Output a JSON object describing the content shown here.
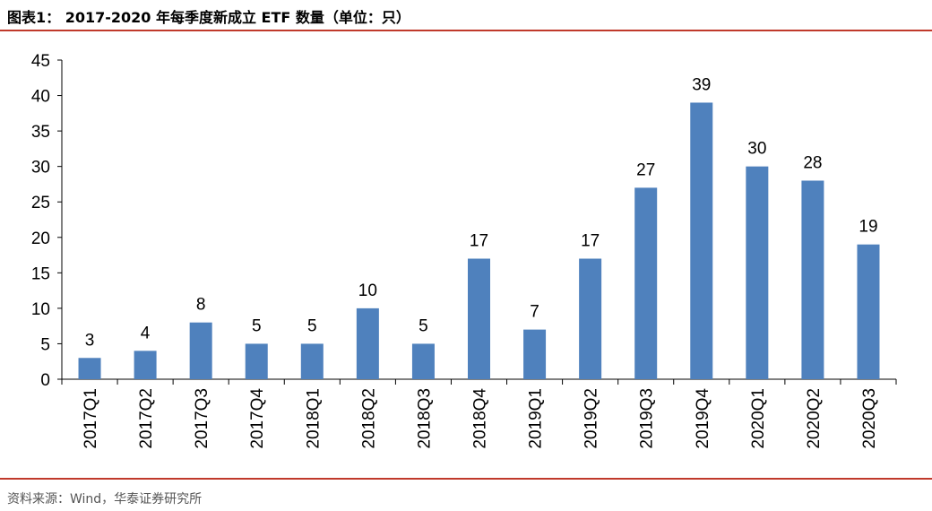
{
  "header": {
    "title": "图表1：  2017-2020 年每季度新成立 ETF 数量（单位：只）"
  },
  "footer": {
    "source": "资料来源：Wind，华泰证券研究所"
  },
  "colors": {
    "bar": "#4f81bd",
    "rule": "#c0392b",
    "axis": "#000000"
  },
  "chart_data": {
    "type": "bar",
    "categories": [
      "2017Q1",
      "2017Q2",
      "2017Q3",
      "2017Q4",
      "2018Q1",
      "2018Q2",
      "2018Q3",
      "2018Q4",
      "2019Q1",
      "2019Q2",
      "2019Q3",
      "2019Q4",
      "2020Q1",
      "2020Q2",
      "2020Q3"
    ],
    "values": [
      3,
      4,
      8,
      5,
      5,
      10,
      5,
      17,
      7,
      17,
      27,
      39,
      30,
      28,
      19
    ],
    "title": "",
    "xlabel": "",
    "ylabel": "",
    "ylim": [
      0,
      45
    ],
    "yticks": [
      0,
      5,
      10,
      15,
      20,
      25,
      30,
      35,
      40,
      45
    ],
    "grid": false,
    "legend": "none",
    "data_labels": true
  }
}
